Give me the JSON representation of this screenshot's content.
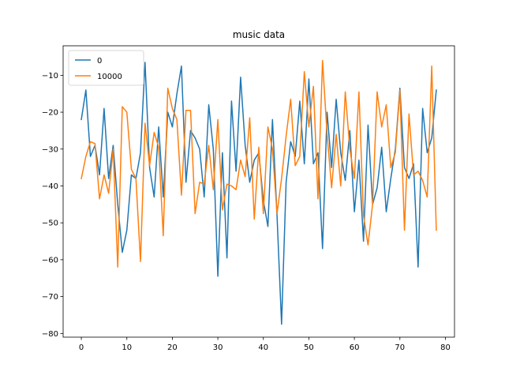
{
  "chart_data": {
    "type": "line",
    "title": "music data",
    "xlabel": "",
    "ylabel": "",
    "xlim": [
      -4,
      82
    ],
    "ylim": [
      -81,
      -2
    ],
    "xticks": [
      0,
      10,
      20,
      30,
      40,
      50,
      60,
      70,
      80
    ],
    "yticks": [
      -80,
      -70,
      -60,
      -50,
      -40,
      -30,
      -20,
      -10
    ],
    "grid": false,
    "legend_position": "top-left",
    "series": [
      {
        "name": "0",
        "color": "#1f77b4",
        "x": [
          0,
          1,
          2,
          3,
          4,
          5,
          6,
          7,
          8,
          9,
          10,
          11,
          12,
          13,
          14,
          15,
          16,
          17,
          18,
          19,
          20,
          21,
          22,
          23,
          24,
          25,
          26,
          27,
          28,
          29,
          30,
          31,
          32,
          33,
          34,
          35,
          36,
          37,
          38,
          39,
          40,
          41,
          42,
          43,
          44,
          45,
          46,
          47,
          48,
          49,
          50,
          51,
          52,
          53,
          54,
          55,
          56,
          57,
          58,
          59,
          60,
          61,
          62,
          63,
          64,
          65,
          66,
          67,
          68,
          69,
          70,
          71,
          72,
          73,
          74,
          75,
          76,
          77,
          78
        ],
        "y": [
          -22,
          -14,
          -32,
          -29,
          -37,
          -19,
          -38,
          -29,
          -45,
          -58,
          -52,
          -37,
          -38,
          -31,
          -6.5,
          -35,
          -43,
          -24,
          -43,
          -20,
          -24,
          -15,
          -7.5,
          -39,
          -25,
          -27,
          -30,
          -43,
          -18,
          -30,
          -64.5,
          -31,
          -59.5,
          -17,
          -36,
          -10.5,
          -29,
          -39,
          -33,
          -31,
          -44,
          -51,
          -22,
          -48,
          -77.5,
          -39,
          -28,
          -32,
          -17,
          -34,
          -11,
          -34,
          -31,
          -57,
          -20,
          -35,
          -16.5,
          -31,
          -38.5,
          -25,
          -47,
          -33,
          -55,
          -23.5,
          -45,
          -40.5,
          -29.5,
          -47,
          -38,
          -30,
          -13.5,
          -35,
          -38,
          -34,
          -62,
          -19,
          -31,
          -27,
          -14
        ]
      },
      {
        "name": "10000",
        "color": "#ff7f0e",
        "x": [
          0,
          1,
          2,
          3,
          4,
          5,
          6,
          7,
          8,
          9,
          10,
          11,
          12,
          13,
          14,
          15,
          16,
          17,
          18,
          19,
          20,
          21,
          22,
          23,
          24,
          25,
          26,
          27,
          28,
          29,
          30,
          31,
          32,
          33,
          34,
          35,
          36,
          37,
          38,
          39,
          40,
          41,
          42,
          43,
          44,
          45,
          46,
          47,
          48,
          49,
          50,
          51,
          52,
          53,
          54,
          55,
          56,
          57,
          58,
          59,
          60,
          61,
          62,
          63,
          64,
          65,
          66,
          67,
          68,
          69,
          70,
          71,
          72,
          73,
          74,
          75,
          76,
          77,
          78
        ],
        "y": [
          -38,
          -32,
          -28,
          -28.5,
          -43.5,
          -37,
          -42,
          -30,
          -62,
          -18.5,
          -20,
          -35.5,
          -38,
          -60.5,
          -23,
          -34.5,
          -25.5,
          -29.5,
          -53.5,
          -13.5,
          -19,
          -22,
          -42.5,
          -19.5,
          -19.5,
          -47.5,
          -39,
          -39.5,
          -29,
          -41,
          -22,
          -46.5,
          -39.5,
          -40,
          -41,
          -33,
          -37.5,
          -21.5,
          -49,
          -29.5,
          -47.5,
          -24,
          -30,
          -47.5,
          -38,
          -26.5,
          -16.5,
          -34.5,
          -32,
          -9,
          -24,
          -13,
          -43.5,
          -6,
          -26,
          -40.5,
          -26,
          -40,
          -14.5,
          -30,
          -38,
          -14.5,
          -48,
          -56,
          -45,
          -14.5,
          -24,
          -18,
          -35,
          -31,
          -14,
          -52,
          -20.5,
          -37,
          -36,
          -38.5,
          -43,
          -7.5,
          -52
        ]
      }
    ]
  }
}
